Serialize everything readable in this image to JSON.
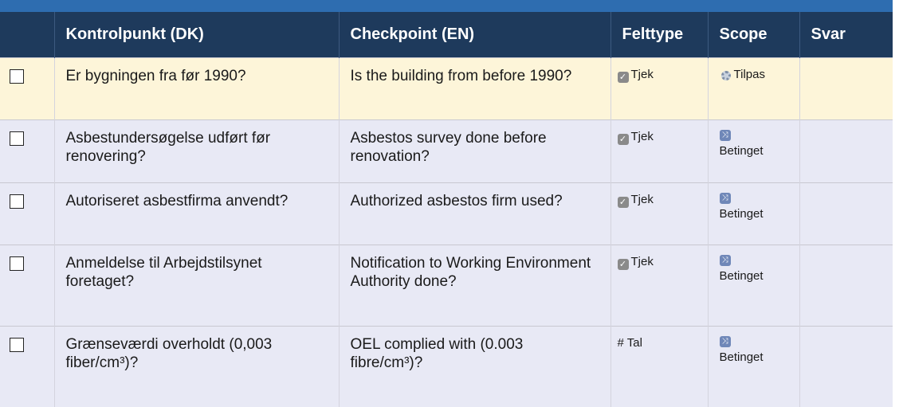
{
  "table": {
    "headers": [
      "Kontrolpunkt (DK)",
      "Checkpoint (EN)",
      "Felttype",
      "Scope",
      "Svar"
    ],
    "rows": [
      [
        "Er bygningen fra før 1990?",
        "Is the building from before 1990?",
        "Tjek",
        "Tilpas"
      ],
      [
        "Asbestundersøgelse udført før renovering?",
        "Asbestos survey done before renovation?",
        "Tjek",
        "Betinget"
      ],
      [
        "Autoriseret asbestfirma anvendt?",
        "Authorized asbestos firm used?",
        "Tjek",
        "Betinget"
      ],
      [
        "Anmeldelse til Arbejdstilsynet foretaget?",
        "Notification to Working Environment Authority done?",
        "Tjek",
        "Betinget"
      ],
      [
        "Grænseværdi overholdt (0,003 fiber/cm³)?",
        "OEL complied with (0.003 fibre/cm³)?",
        "# Tal",
        "Betinget"
      ]
    ]
  }
}
